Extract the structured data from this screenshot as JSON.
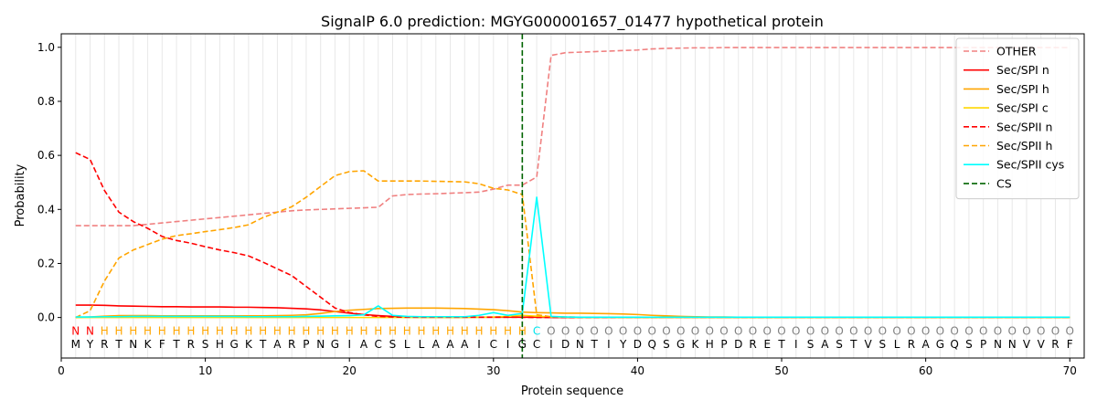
{
  "chart_data": {
    "type": "line",
    "title": "SignalP 6.0 prediction: MGYG000001657_01477 hypothetical protein",
    "xlabel": "Protein sequence",
    "ylabel": "Probability",
    "xlim": [
      0,
      71
    ],
    "ylim": [
      -0.15,
      1.05
    ],
    "xticks": [
      0,
      10,
      20,
      30,
      40,
      50,
      60,
      70
    ],
    "yticks": [
      0.0,
      0.2,
      0.4,
      0.6,
      0.8,
      1.0
    ],
    "xtick_labels": [
      "0",
      "10",
      "20",
      "30",
      "40",
      "50",
      "60",
      "70"
    ],
    "ytick_labels": [
      "0.0",
      "0.2",
      "0.4",
      "0.6",
      "0.8",
      "1.0"
    ],
    "legend_position": "top-right",
    "sequence": [
      "M",
      "Y",
      "R",
      "T",
      "N",
      "K",
      "F",
      "T",
      "R",
      "S",
      "H",
      "G",
      "K",
      "T",
      "A",
      "R",
      "P",
      "N",
      "G",
      "I",
      "A",
      "C",
      "S",
      "L",
      "L",
      "A",
      "A",
      "A",
      "I",
      "C",
      "I",
      "G",
      "C",
      "I",
      "D",
      "N",
      "T",
      "I",
      "Y",
      "D",
      "Q",
      "S",
      "G",
      "K",
      "H",
      "P",
      "D",
      "R",
      "E",
      "T",
      "I",
      "S",
      "A",
      "S",
      "T",
      "V",
      "S",
      "L",
      "R",
      "A",
      "G",
      "Q",
      "S",
      "P",
      "N",
      "N",
      "V",
      "V",
      "R",
      "F"
    ],
    "region_labels": [
      "N",
      "N",
      "H",
      "H",
      "H",
      "H",
      "H",
      "H",
      "H",
      "H",
      "H",
      "H",
      "H",
      "H",
      "H",
      "H",
      "H",
      "H",
      "H",
      "H",
      "H",
      "H",
      "H",
      "H",
      "H",
      "H",
      "H",
      "H",
      "H",
      "H",
      "H",
      "H",
      "C",
      "O",
      "O",
      "O",
      "O",
      "O",
      "O",
      "O",
      "O",
      "O",
      "O",
      "O",
      "O",
      "O",
      "O",
      "O",
      "O",
      "O",
      "O",
      "O",
      "O",
      "O",
      "O",
      "O",
      "O",
      "O",
      "O",
      "O",
      "O",
      "O",
      "O",
      "O",
      "O",
      "O",
      "O",
      "O",
      "O",
      "O"
    ],
    "region_colors": {
      "N": "#ff0000",
      "H": "#ffa500",
      "C": "#00e5ee",
      "O": "#808080"
    },
    "cs_position": 32,
    "cs_label": "CS",
    "series": [
      {
        "name": "OTHER",
        "color": "#f08080",
        "dash": true,
        "values": [
          0.34,
          0.34,
          0.34,
          0.34,
          0.34,
          0.345,
          0.35,
          0.355,
          0.36,
          0.365,
          0.37,
          0.375,
          0.38,
          0.385,
          0.39,
          0.395,
          0.398,
          0.4,
          0.402,
          0.404,
          0.406,
          0.408,
          0.45,
          0.455,
          0.457,
          0.458,
          0.46,
          0.462,
          0.464,
          0.475,
          0.49,
          0.49,
          0.52,
          0.97,
          0.98,
          0.982,
          0.984,
          0.986,
          0.988,
          0.99,
          0.994,
          0.996,
          0.997,
          0.998,
          0.998,
          0.999,
          0.999,
          0.999,
          0.999,
          0.999,
          0.999,
          0.999,
          0.999,
          0.999,
          0.999,
          0.999,
          0.999,
          0.999,
          0.999,
          0.999,
          0.999,
          0.999,
          0.999,
          0.999,
          0.999,
          0.999,
          0.999,
          0.999,
          0.999,
          0.999
        ]
      },
      {
        "name": "Sec/SPI n",
        "color": "#ff0000",
        "dash": false,
        "values": [
          0.046,
          0.046,
          0.045,
          0.043,
          0.042,
          0.041,
          0.04,
          0.04,
          0.039,
          0.039,
          0.039,
          0.038,
          0.038,
          0.037,
          0.036,
          0.034,
          0.032,
          0.028,
          0.022,
          0.016,
          0.011,
          0.007,
          0.004,
          0.002,
          0.001,
          0.001,
          0.001,
          0.001,
          0.001,
          0.001,
          0.001,
          0.001,
          0.001,
          0.0,
          0.0,
          0.0,
          0.0,
          0.0,
          0.0,
          0.0,
          0.0,
          0.0,
          0.0,
          0.0,
          0.0,
          0.0,
          0.0,
          0.0,
          0.0,
          0.0,
          0.0,
          0.0,
          0.0,
          0.0,
          0.0,
          0.0,
          0.0,
          0.0,
          0.0,
          0.0,
          0.0,
          0.0,
          0.0,
          0.0,
          0.0,
          0.0,
          0.0,
          0.0,
          0.0,
          0.0
        ]
      },
      {
        "name": "Sec/SPI h",
        "color": "#ffa500",
        "dash": false,
        "values": [
          0.0,
          0.002,
          0.005,
          0.007,
          0.007,
          0.007,
          0.006,
          0.006,
          0.006,
          0.006,
          0.006,
          0.006,
          0.006,
          0.006,
          0.007,
          0.008,
          0.01,
          0.015,
          0.022,
          0.027,
          0.03,
          0.033,
          0.034,
          0.035,
          0.035,
          0.035,
          0.034,
          0.033,
          0.031,
          0.029,
          0.025,
          0.02,
          0.018,
          0.017,
          0.016,
          0.016,
          0.015,
          0.014,
          0.013,
          0.011,
          0.008,
          0.006,
          0.004,
          0.003,
          0.002,
          0.002,
          0.001,
          0.001,
          0.001,
          0.001,
          0.001,
          0.001,
          0.001,
          0.001,
          0.001,
          0.001,
          0.001,
          0.001,
          0.001,
          0.001,
          0.001,
          0.001,
          0.001,
          0.001,
          0.001,
          0.001,
          0.001,
          0.001,
          0.001,
          0.001
        ]
      },
      {
        "name": "Sec/SPI c",
        "color": "#ffd700",
        "dash": false,
        "values": [
          0.0,
          0.0,
          0.0,
          0.0,
          0.0,
          0.0,
          0.0,
          0.0,
          0.0,
          0.0,
          0.0,
          0.0,
          0.0,
          0.0,
          0.0,
          0.0,
          0.0,
          0.0,
          0.0,
          0.0,
          0.0,
          0.0,
          0.0,
          0.0,
          0.0,
          0.0,
          0.0,
          0.0,
          0.001,
          0.002,
          0.004,
          0.008,
          0.005,
          0.002,
          0.001,
          0.0,
          0.0,
          0.0,
          0.0,
          0.0,
          0.0,
          0.0,
          0.0,
          0.0,
          0.0,
          0.0,
          0.0,
          0.0,
          0.0,
          0.0,
          0.0,
          0.0,
          0.0,
          0.0,
          0.0,
          0.0,
          0.0,
          0.0,
          0.0,
          0.0,
          0.0,
          0.0,
          0.0,
          0.0,
          0.0,
          0.0,
          0.0,
          0.0,
          0.0,
          0.0
        ]
      },
      {
        "name": "Sec/SPII n",
        "color": "#ff0000",
        "dash": true,
        "values": [
          0.61,
          0.585,
          0.47,
          0.39,
          0.355,
          0.33,
          0.3,
          0.285,
          0.275,
          0.262,
          0.25,
          0.24,
          0.228,
          0.205,
          0.18,
          0.155,
          0.115,
          0.075,
          0.035,
          0.018,
          0.01,
          0.004,
          0.002,
          0.001,
          0.001,
          0.001,
          0.001,
          0.001,
          0.001,
          0.001,
          0.001,
          0.001,
          0.0,
          0.0,
          0.0,
          0.0,
          0.0,
          0.0,
          0.0,
          0.0,
          0.0,
          0.0,
          0.0,
          0.0,
          0.0,
          0.0,
          0.0,
          0.0,
          0.0,
          0.0,
          0.0,
          0.0,
          0.0,
          0.0,
          0.0,
          0.0,
          0.0,
          0.0,
          0.0,
          0.0,
          0.0,
          0.0,
          0.0,
          0.0,
          0.0,
          0.0,
          0.0,
          0.0,
          0.0,
          0.0
        ]
      },
      {
        "name": "Sec/SPII h",
        "color": "#ffa500",
        "dash": true,
        "values": [
          0.0,
          0.025,
          0.135,
          0.22,
          0.25,
          0.27,
          0.29,
          0.303,
          0.31,
          0.318,
          0.325,
          0.333,
          0.343,
          0.37,
          0.39,
          0.41,
          0.445,
          0.485,
          0.525,
          0.54,
          0.543,
          0.505,
          0.505,
          0.505,
          0.505,
          0.504,
          0.503,
          0.502,
          0.495,
          0.478,
          0.472,
          0.455,
          0.01,
          0.003,
          0.002,
          0.001,
          0.001,
          0.001,
          0.0,
          0.0,
          0.0,
          0.0,
          0.0,
          0.0,
          0.0,
          0.0,
          0.0,
          0.0,
          0.0,
          0.0,
          0.0,
          0.0,
          0.0,
          0.0,
          0.0,
          0.0,
          0.0,
          0.0,
          0.0,
          0.0,
          0.0,
          0.0,
          0.0,
          0.0,
          0.0,
          0.0,
          0.0,
          0.0,
          0.0,
          0.0
        ]
      },
      {
        "name": "Sec/SPII cys",
        "color": "#00ffff",
        "dash": false,
        "values": [
          0.002,
          0.002,
          0.003,
          0.003,
          0.004,
          0.004,
          0.004,
          0.004,
          0.004,
          0.004,
          0.004,
          0.004,
          0.003,
          0.003,
          0.003,
          0.003,
          0.004,
          0.005,
          0.006,
          0.007,
          0.01,
          0.043,
          0.008,
          0.004,
          0.003,
          0.003,
          0.003,
          0.003,
          0.008,
          0.018,
          0.008,
          0.015,
          0.445,
          0.004,
          0.002,
          0.001,
          0.001,
          0.001,
          0.001,
          0.001,
          0.001,
          0.001,
          0.001,
          0.001,
          0.001,
          0.001,
          0.001,
          0.001,
          0.001,
          0.001,
          0.001,
          0.001,
          0.001,
          0.001,
          0.001,
          0.001,
          0.001,
          0.001,
          0.001,
          0.001,
          0.001,
          0.001,
          0.001,
          0.001,
          0.001,
          0.001,
          0.001,
          0.001,
          0.001,
          0.001
        ]
      }
    ]
  }
}
